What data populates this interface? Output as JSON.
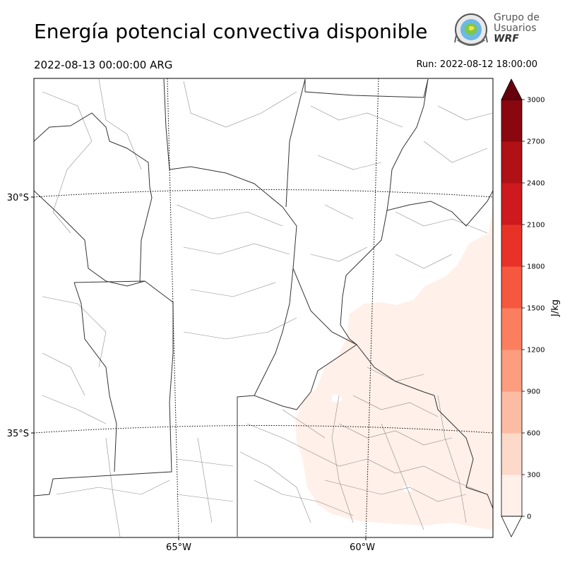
{
  "header": {
    "title": "Energía potencial convectiva disponible",
    "valid_time": "2022-08-13 00:00:00 ARG",
    "run_time": "Run: 2022-08-12 18:00:00"
  },
  "logo": {
    "line1": "Grupo de",
    "line2": "Usuarios",
    "line3": "WRF"
  },
  "map": {
    "lat_labels": [
      "30°S",
      "35°S"
    ],
    "lon_labels": [
      "65°W",
      "60°W"
    ]
  },
  "colorbar": {
    "unit_label": "J/kg",
    "ticks": [
      "0",
      "300",
      "600",
      "900",
      "1200",
      "1500",
      "1800",
      "2100",
      "2400",
      "2700",
      "3000"
    ],
    "colors": [
      "#fff0e9",
      "#fdd9c9",
      "#fcbca3",
      "#fc9d7f",
      "#fb7f5e",
      "#f6573f",
      "#e83228",
      "#ce1a1e",
      "#af1117",
      "#8a0710",
      "#67000d"
    ],
    "over_color": "#67000d",
    "under_color": "#ffffff"
  },
  "chart_data": {
    "type": "heatmap",
    "variable": "CAPE",
    "unit": "J/kg",
    "levels": [
      0,
      300,
      600,
      900,
      1200,
      1500,
      1800,
      2100,
      2400,
      2700,
      3000
    ],
    "observed_range": [
      0,
      300
    ],
    "region_with_values": "east / southeast (Buenos Aires province and surroundings)"
  }
}
